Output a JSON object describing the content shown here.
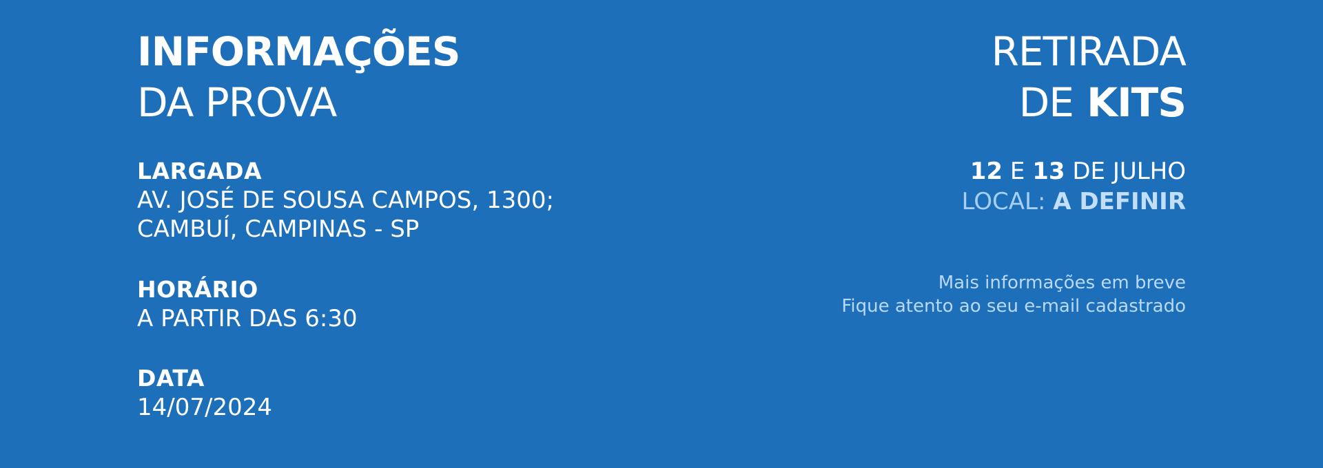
{
  "colors": {
    "background": "#1e6fb9",
    "text": "#ffffff",
    "accent_light": "#a7d0f6"
  },
  "event_info": {
    "title_bold": "INFORMAÇÕES",
    "title_light": "DA PROVA",
    "sections": [
      {
        "label": "LARGADA",
        "lines": [
          "AV. JOSÉ DE SOUSA CAMPOS, 1300;",
          "CAMBUÍ, CAMPINAS - SP"
        ]
      },
      {
        "label": "HORÁRIO",
        "lines": [
          "A PARTIR DAS 6:30"
        ]
      },
      {
        "label": "DATA",
        "lines": [
          "14/07/2024"
        ]
      }
    ]
  },
  "kit_pickup": {
    "title_light_1": "RETIRADA",
    "title_light_2": "DE",
    "title_bold": "KITS",
    "date_day_1": "12",
    "date_connector": "E",
    "date_day_2": "13",
    "date_month": "DE JULHO",
    "local_label": "LOCAL:",
    "local_value": "A DEFINIR",
    "info_line_1": "Mais informações em breve",
    "info_line_2": "Fique atento ao seu e-mail cadastrado"
  }
}
